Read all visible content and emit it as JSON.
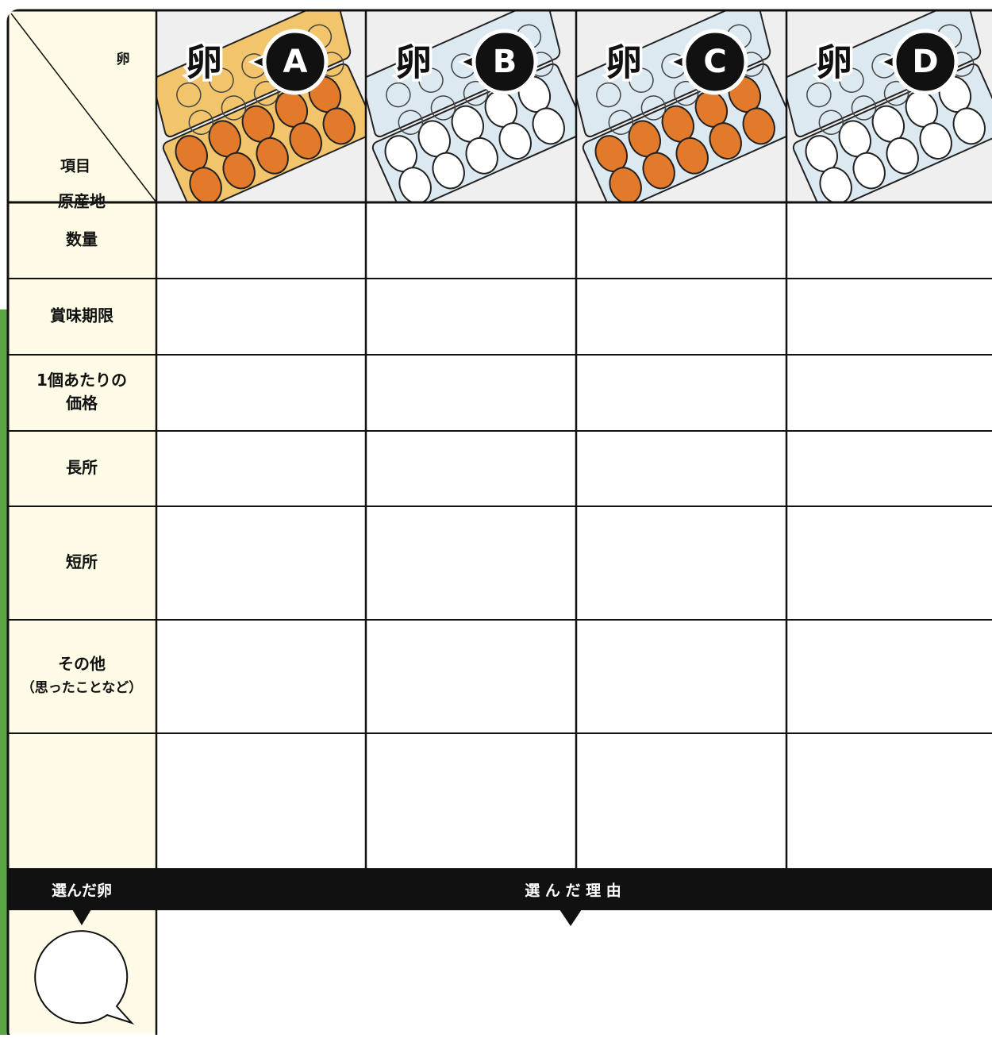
{
  "corner": {
    "top": "卵",
    "bottom": "項目"
  },
  "columns": [
    {
      "label": "卵",
      "letter": "A"
    },
    {
      "label": "卵",
      "letter": "B"
    },
    {
      "label": "卵",
      "letter": "C"
    },
    {
      "label": "卵",
      "letter": "D"
    }
  ],
  "rows": [
    [
      "原産地"
    ],
    [
      "数量"
    ],
    [
      "賞味期限"
    ],
    [
      "1個あたりの",
      "価格"
    ],
    [
      "長所"
    ],
    [
      "短所"
    ],
    [
      "その他",
      "（思ったことなど）"
    ]
  ],
  "footer": {
    "chosen": "選んだ卵",
    "reason": "選 ん だ 理 由"
  }
}
